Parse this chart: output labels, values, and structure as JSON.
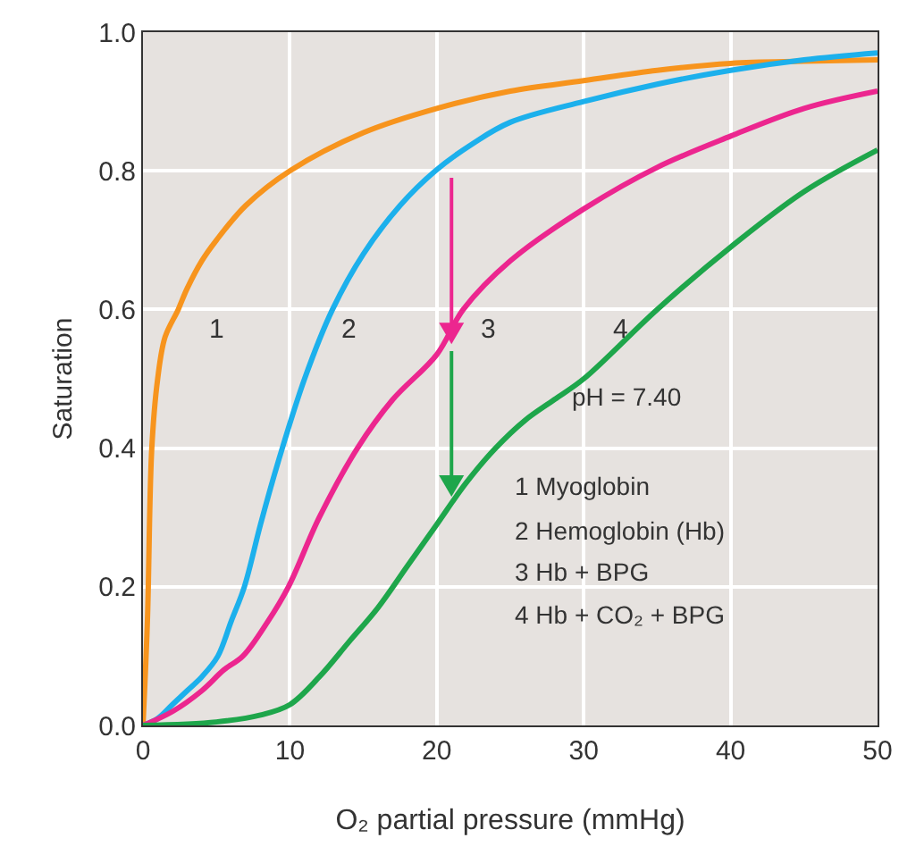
{
  "chart_data": {
    "type": "line",
    "xlabel": "O₂ partial pressure (mmHg)",
    "ylabel": "Saturation",
    "xlim": [
      0,
      50
    ],
    "xticks": [
      0,
      10,
      20,
      30,
      40,
      50
    ],
    "ylim": [
      0,
      1
    ],
    "yticks": [
      {
        "value": 0,
        "label": "0.0"
      },
      {
        "value": 0.2,
        "label": "0.2"
      },
      {
        "value": 0.4,
        "label": "0.4"
      },
      {
        "value": 0.6,
        "label": "0.6"
      },
      {
        "value": 0.8,
        "label": "0.8"
      },
      {
        "value": 1,
        "label": "1.0"
      }
    ],
    "grid": true,
    "marker": "none",
    "line_style": "solid",
    "series": [
      {
        "color": "#f7941d",
        "x": [
          0,
          0.3,
          0.6,
          1,
          1.5,
          2.4,
          3,
          4,
          5,
          7,
          10,
          15,
          20,
          25,
          30,
          35,
          40,
          45,
          50
        ],
        "values": [
          0,
          0.15,
          0.4,
          0.5,
          0.56,
          0.6,
          0.63,
          0.67,
          0.7,
          0.75,
          0.8,
          0.855,
          0.89,
          0.915,
          0.93,
          0.945,
          0.955,
          0.958,
          0.96
        ]
      },
      {
        "color": "#1cb0ec",
        "x": [
          0,
          1,
          2,
          3,
          4,
          5.1,
          6,
          6.9,
          8,
          9.2,
          11,
          12.9,
          15,
          17.5,
          19.9,
          22.5,
          25,
          30,
          35,
          40,
          45,
          50
        ],
        "values": [
          0,
          0.01,
          0.03,
          0.05,
          0.07,
          0.1,
          0.15,
          0.2,
          0.29,
          0.38,
          0.5,
          0.6,
          0.68,
          0.75,
          0.8,
          0.84,
          0.87,
          0.9,
          0.925,
          0.945,
          0.96,
          0.97
        ]
      },
      {
        "color": "#ec268f",
        "x": [
          0,
          2,
          4,
          5.5,
          6.8,
          8.5,
          9.9,
          12,
          14.6,
          17,
          20,
          21.8,
          25,
          30,
          35,
          40,
          45,
          50
        ],
        "values": [
          0,
          0.02,
          0.05,
          0.08,
          0.1,
          0.15,
          0.2,
          0.3,
          0.4,
          0.47,
          0.535,
          0.6,
          0.67,
          0.745,
          0.805,
          0.85,
          0.89,
          0.915
        ]
      },
      {
        "color": "#1ea64b",
        "x": [
          0,
          5,
          8,
          10,
          12,
          14,
          16,
          18,
          20,
          22,
          24,
          26,
          28,
          30,
          35,
          40,
          45,
          50
        ],
        "values": [
          0,
          0.005,
          0.015,
          0.03,
          0.07,
          0.12,
          0.17,
          0.23,
          0.29,
          0.35,
          0.4,
          0.44,
          0.47,
          0.5,
          0.6,
          0.69,
          0.77,
          0.83
        ]
      }
    ],
    "annotations": [
      "1",
      "2",
      "3",
      "4",
      "pH = 7.40",
      "1 Myoglobin",
      "2 Hemoglobin (Hb)",
      "3 Hb + BPG",
      "4 Hb + CO₂ + BPG"
    ]
  }
}
